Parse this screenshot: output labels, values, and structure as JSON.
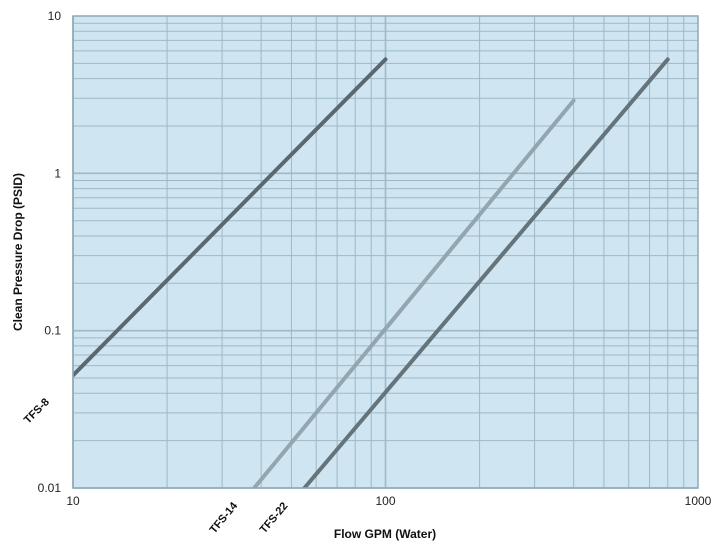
{
  "chart_data": {
    "type": "line",
    "xscale": "log",
    "yscale": "log",
    "xlim": [
      10,
      1000
    ],
    "ylim": [
      0.01,
      10
    ],
    "xlabel": "Flow GPM (Water)",
    "ylabel": "Clean Pressure Drop (PSID)",
    "x_ticks": [
      "10",
      "100",
      "1000"
    ],
    "y_ticks": [
      "0.01",
      "0.1",
      "1",
      "10"
    ],
    "grid": true,
    "legend": "none",
    "colors": {
      "plot_background": "#cfe6f2",
      "grid": "#9fb8c6",
      "frame": "#8fa8b6"
    },
    "series": [
      {
        "name": "TFS-8",
        "color": "#5c6870",
        "x": [
          10,
          100
        ],
        "y": [
          0.052,
          5.3
        ]
      },
      {
        "name": "TFS-14",
        "color": "#93a5ae",
        "x": [
          38,
          400
        ],
        "y": [
          0.01,
          2.9
        ]
      },
      {
        "name": "TFS-22",
        "color": "#65737b",
        "x": [
          55,
          800
        ],
        "y": [
          0.01,
          5.3
        ]
      }
    ]
  }
}
